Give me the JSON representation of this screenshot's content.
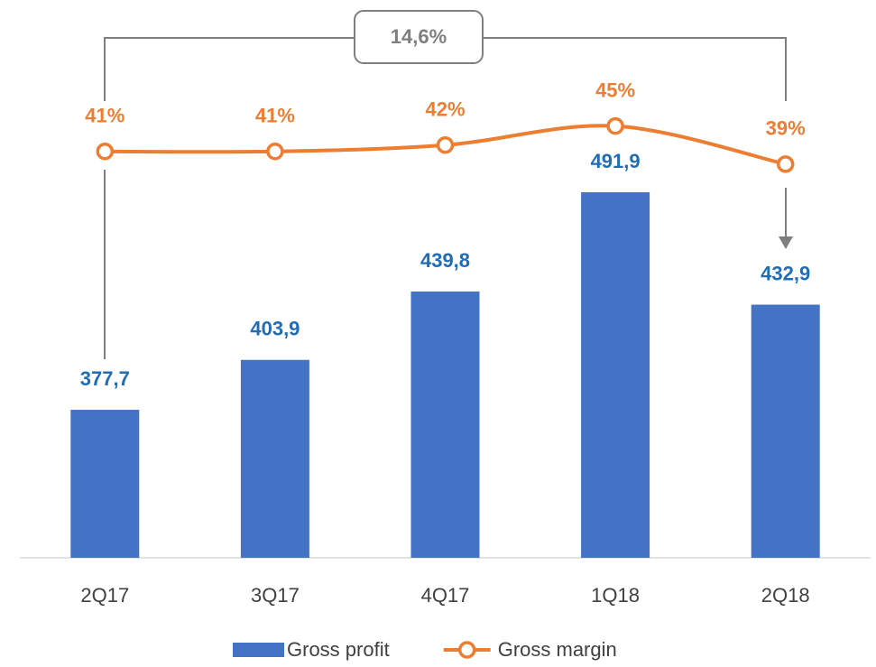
{
  "chart_data": {
    "type": "bar_line",
    "categories": [
      "2Q17",
      "3Q17",
      "4Q17",
      "1Q18",
      "2Q18"
    ],
    "series": [
      {
        "name": "Gross profit",
        "type": "bar",
        "color": "#4472c4",
        "label_color": "#1f6db5",
        "values": [
          377.7,
          403.9,
          439.8,
          491.9,
          432.9
        ],
        "value_labels": [
          "377,7",
          "403,9",
          "439,8",
          "491,9",
          "432,9"
        ]
      },
      {
        "name": "Gross margin",
        "type": "line",
        "axis": "y2",
        "color": "#ed7d31",
        "values": [
          41,
          41,
          42,
          45,
          39
        ],
        "value_labels": [
          "41%",
          "41%",
          "42%",
          "45%",
          "39%"
        ]
      }
    ],
    "ylim": [
      300,
      590
    ],
    "y2lim": [
      -23,
      64
    ],
    "annotations": [
      "14,6%"
    ]
  }
}
